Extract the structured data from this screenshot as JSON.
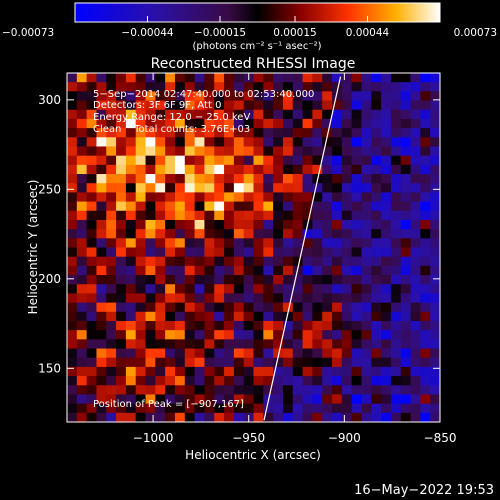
{
  "chart_data": {
    "type": "heatmap",
    "title": "Reconstructed RHESSI Image",
    "xlabel": "Heliocentric X (arcsec)",
    "ylabel": "Heliocentric Y (arcsec)",
    "xlim": [
      -1045,
      -850
    ],
    "ylim": [
      120,
      315
    ],
    "xticks": [
      -1000,
      -950,
      -900,
      -850
    ],
    "yticks": [
      150,
      200,
      250,
      300
    ],
    "xtick_labels": [
      "−1000",
      "−950",
      "−900",
      "−850"
    ],
    "ytick_labels": [
      "150",
      "200",
      "250",
      "300"
    ],
    "colorbar": {
      "ticks": [
        -0.00073,
        -0.00044,
        -0.00015,
        0.00015,
        0.00044,
        0.00073
      ],
      "tick_labels": [
        "−0.00073",
        "−0.00044",
        "−0.00015",
        "0.00015",
        "0.00044",
        "0.00073"
      ],
      "unit_label": "(photons cm⁻² s⁻¹ asec⁻²)",
      "range": [
        -0.00073,
        0.00073
      ]
    },
    "annotations": [
      "5−Sep−2014 02:47:40.000 to 02:53:40.000",
      "Detectors: 3F 6F 9F, Att 0",
      "Energy Range: 12.0 − 25.0 keV",
      "Clean    Total counts: 3.76E+03"
    ],
    "peak_label": "Position of Peak = [−907,167]",
    "limb_line": [
      [
        -942,
        121
      ],
      [
        -902,
        313
      ]
    ],
    "grid": false
  },
  "footer": {
    "timestamp": "16−May−2022 19:53"
  }
}
